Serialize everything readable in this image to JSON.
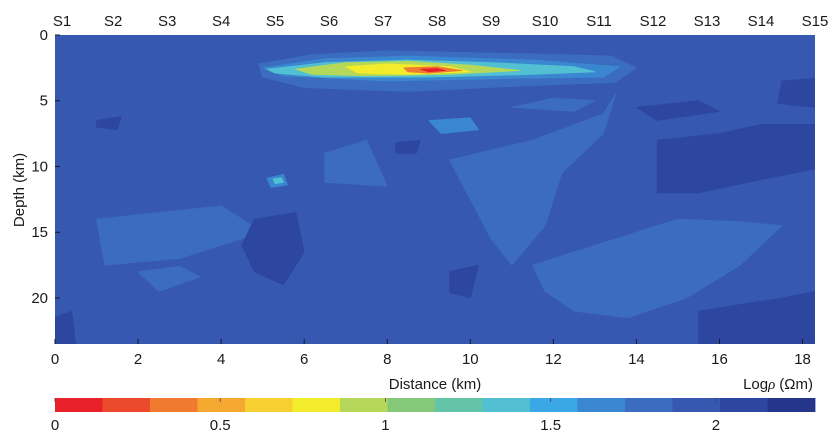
{
  "chart_data": {
    "type": "heatmap",
    "title": "",
    "xlabel": "Distance (km)",
    "ylabel": "Depth (km)",
    "xlim": [
      0,
      18.3
    ],
    "ylim": [
      0,
      23.5
    ],
    "y_inverted": true,
    "x_ticks": [
      "0",
      "2",
      "4",
      "6",
      "8",
      "10",
      "12",
      "14",
      "16",
      "18"
    ],
    "y_ticks": [
      "0",
      "5",
      "10",
      "15",
      "20"
    ],
    "stations": [
      {
        "name": "S1",
        "x": 0.1
      },
      {
        "name": "S2",
        "x": 1.4
      },
      {
        "name": "S3",
        "x": 2.7
      },
      {
        "name": "S4",
        "x": 4.0
      },
      {
        "name": "S5",
        "x": 5.3
      },
      {
        "name": "S6",
        "x": 6.6
      },
      {
        "name": "S7",
        "x": 7.9
      },
      {
        "name": "S8",
        "x": 9.2
      },
      {
        "name": "S9",
        "x": 10.5
      },
      {
        "name": "S10",
        "x": 11.8
      },
      {
        "name": "S11",
        "x": 13.1
      },
      {
        "name": "S12",
        "x": 14.4
      },
      {
        "name": "S13",
        "x": 15.7
      },
      {
        "name": "S14",
        "x": 17.0
      },
      {
        "name": "S15",
        "x": 18.3
      }
    ],
    "colorbar": {
      "label_prefix": "Log",
      "label_symbol": "ρ",
      "label_unit": "(Ωm)",
      "range": [
        0,
        2.3
      ],
      "ticks": [
        "0",
        "0.5",
        "1",
        "1.5",
        "2"
      ],
      "colors": [
        "#e8202a",
        "#ec4a2c",
        "#f07a30",
        "#f4a830",
        "#f5d030",
        "#f2ec2a",
        "#b6d85a",
        "#86c87a",
        "#63c4a8",
        "#52c0d2",
        "#3aa8e4",
        "#3a86d0",
        "#3c6cc0",
        "#3658b0",
        "#2d47a0",
        "#25358a"
      ]
    },
    "background_value": 1.9,
    "bodies": [
      {
        "value": 1.8,
        "points": [
          [
            4.9,
            2.2
          ],
          [
            6.2,
            1.5
          ],
          [
            8.0,
            1.2
          ],
          [
            11.0,
            1.4
          ],
          [
            13.4,
            1.6
          ],
          [
            14.0,
            2.5
          ],
          [
            13.5,
            3.6
          ],
          [
            11.0,
            3.9
          ],
          [
            8.5,
            4.3
          ],
          [
            6.0,
            4.0
          ],
          [
            5.0,
            3.2
          ]
        ]
      },
      {
        "value": 1.6,
        "points": [
          [
            5.0,
            2.5
          ],
          [
            6.5,
            1.8
          ],
          [
            8.5,
            1.6
          ],
          [
            11.5,
            1.9
          ],
          [
            13.6,
            2.4
          ],
          [
            13.2,
            3.2
          ],
          [
            11.0,
            3.3
          ],
          [
            8.0,
            3.5
          ],
          [
            5.5,
            3.1
          ]
        ]
      },
      {
        "value": 1.3,
        "points": [
          [
            5.1,
            2.6
          ],
          [
            6.5,
            2.1
          ],
          [
            8.5,
            1.9
          ],
          [
            10.5,
            2.1
          ],
          [
            12.5,
            2.4
          ],
          [
            13.0,
            2.8
          ],
          [
            11.5,
            3.0
          ],
          [
            9.0,
            3.2
          ],
          [
            6.5,
            3.2
          ],
          [
            5.3,
            2.9
          ]
        ]
      },
      {
        "value": 0.9,
        "points": [
          [
            5.8,
            2.6
          ],
          [
            7.0,
            2.1
          ],
          [
            8.5,
            2.0
          ],
          [
            10.0,
            2.3
          ],
          [
            11.2,
            2.7
          ],
          [
            9.5,
            3.0
          ],
          [
            7.5,
            3.1
          ],
          [
            6.2,
            3.0
          ]
        ]
      },
      {
        "value": 0.75,
        "points": [
          [
            7.0,
            2.4
          ],
          [
            8.0,
            2.2
          ],
          [
            9.5,
            2.4
          ],
          [
            10.0,
            2.8
          ],
          [
            8.5,
            3.0
          ],
          [
            7.3,
            2.9
          ]
        ]
      },
      {
        "value": 0.3,
        "points": [
          [
            8.4,
            2.5
          ],
          [
            9.2,
            2.4
          ],
          [
            9.8,
            2.7
          ],
          [
            9.0,
            2.9
          ],
          [
            8.5,
            2.8
          ]
        ]
      },
      {
        "value": 0.0,
        "points": [
          [
            8.8,
            2.6
          ],
          [
            9.2,
            2.55
          ],
          [
            9.4,
            2.7
          ],
          [
            9.0,
            2.8
          ]
        ]
      },
      {
        "value": 1.7,
        "points": [
          [
            5.1,
            10.9
          ],
          [
            5.5,
            10.6
          ],
          [
            5.6,
            11.4
          ],
          [
            5.2,
            11.6
          ]
        ]
      },
      {
        "value": 1.4,
        "points": [
          [
            5.25,
            10.95
          ],
          [
            5.45,
            10.85
          ],
          [
            5.5,
            11.2
          ],
          [
            5.3,
            11.3
          ]
        ]
      },
      {
        "value": 1.7,
        "points": [
          [
            9.0,
            6.5
          ],
          [
            10.0,
            6.3
          ],
          [
            10.2,
            7.2
          ],
          [
            9.3,
            7.5
          ]
        ]
      },
      {
        "value": 1.8,
        "points": [
          [
            6.5,
            9.0
          ],
          [
            7.5,
            8.0
          ],
          [
            8.0,
            11.5
          ],
          [
            6.5,
            11.2
          ]
        ]
      },
      {
        "value": 1.8,
        "points": [
          [
            1.0,
            14.0
          ],
          [
            2.5,
            13.5
          ],
          [
            4.0,
            13.0
          ],
          [
            5.0,
            15.0
          ],
          [
            3.0,
            17.0
          ],
          [
            1.2,
            17.5
          ]
        ]
      },
      {
        "value": 1.8,
        "points": [
          [
            2.0,
            18.0
          ],
          [
            3.0,
            17.6
          ],
          [
            3.5,
            18.4
          ],
          [
            2.5,
            19.5
          ]
        ]
      },
      {
        "value": 1.8,
        "points": [
          [
            9.5,
            9.5
          ],
          [
            11.5,
            8.0
          ],
          [
            13.2,
            6.0
          ],
          [
            13.5,
            4.5
          ],
          [
            13.2,
            7.5
          ],
          [
            12.2,
            10.5
          ],
          [
            11.8,
            14.5
          ],
          [
            11.0,
            17.5
          ],
          [
            10.5,
            15.5
          ],
          [
            10.0,
            12.5
          ]
        ]
      },
      {
        "value": 1.8,
        "points": [
          [
            11.5,
            17.5
          ],
          [
            13.0,
            16.0
          ],
          [
            15.0,
            14.0
          ],
          [
            16.5,
            14.2
          ],
          [
            17.5,
            14.5
          ],
          [
            16.5,
            17.5
          ],
          [
            15.2,
            20.0
          ],
          [
            13.8,
            21.5
          ],
          [
            12.5,
            21.0
          ],
          [
            11.8,
            19.5
          ]
        ]
      },
      {
        "value": 1.8,
        "points": [
          [
            11.0,
            5.5
          ],
          [
            12.0,
            4.8
          ],
          [
            13.0,
            5.0
          ],
          [
            12.5,
            5.8
          ]
        ]
      },
      {
        "value": 1.8,
        "points": [
          [
            13.5,
            17.0
          ],
          [
            14.8,
            17.0
          ],
          [
            15.0,
            18.5
          ],
          [
            14.0,
            19.0
          ]
        ]
      },
      {
        "value": 2.1,
        "points": [
          [
            14.5,
            8.0
          ],
          [
            16.0,
            7.5
          ],
          [
            17.0,
            6.8
          ],
          [
            18.3,
            6.8
          ],
          [
            18.3,
            10.2
          ],
          [
            17.0,
            11.0
          ],
          [
            15.5,
            12.0
          ],
          [
            14.5,
            12.0
          ]
        ]
      },
      {
        "value": 2.1,
        "points": [
          [
            4.8,
            14.0
          ],
          [
            5.8,
            13.5
          ],
          [
            6.0,
            16.5
          ],
          [
            5.5,
            19.0
          ],
          [
            4.8,
            18.0
          ],
          [
            4.5,
            16.0
          ]
        ]
      },
      {
        "value": 2.1,
        "points": [
          [
            9.5,
            18.0
          ],
          [
            10.2,
            17.5
          ],
          [
            10.0,
            20.0
          ],
          [
            9.5,
            19.6
          ]
        ]
      },
      {
        "value": 2.1,
        "points": [
          [
            0.0,
            21.5
          ],
          [
            0.4,
            21.0
          ],
          [
            0.5,
            23.5
          ],
          [
            0.0,
            23.5
          ]
        ]
      },
      {
        "value": 2.1,
        "points": [
          [
            15.5,
            21.0
          ],
          [
            17.5,
            20.0
          ],
          [
            18.3,
            19.5
          ],
          [
            18.3,
            23.5
          ],
          [
            15.5,
            23.5
          ]
        ]
      },
      {
        "value": 2.1,
        "points": [
          [
            14.0,
            5.5
          ],
          [
            15.5,
            5.0
          ],
          [
            16.0,
            5.8
          ],
          [
            14.5,
            6.5
          ]
        ]
      },
      {
        "value": 2.1,
        "points": [
          [
            8.2,
            8.2
          ],
          [
            8.8,
            8.0
          ],
          [
            8.7,
            9.0
          ],
          [
            8.2,
            9.0
          ]
        ]
      },
      {
        "value": 2.1,
        "points": [
          [
            17.5,
            3.5
          ],
          [
            18.3,
            3.3
          ],
          [
            18.3,
            5.5
          ],
          [
            17.4,
            5.2
          ]
        ]
      },
      {
        "value": 2.1,
        "points": [
          [
            1.0,
            6.5
          ],
          [
            1.6,
            6.2
          ],
          [
            1.5,
            7.2
          ],
          [
            1.0,
            7.0
          ]
        ]
      }
    ]
  }
}
